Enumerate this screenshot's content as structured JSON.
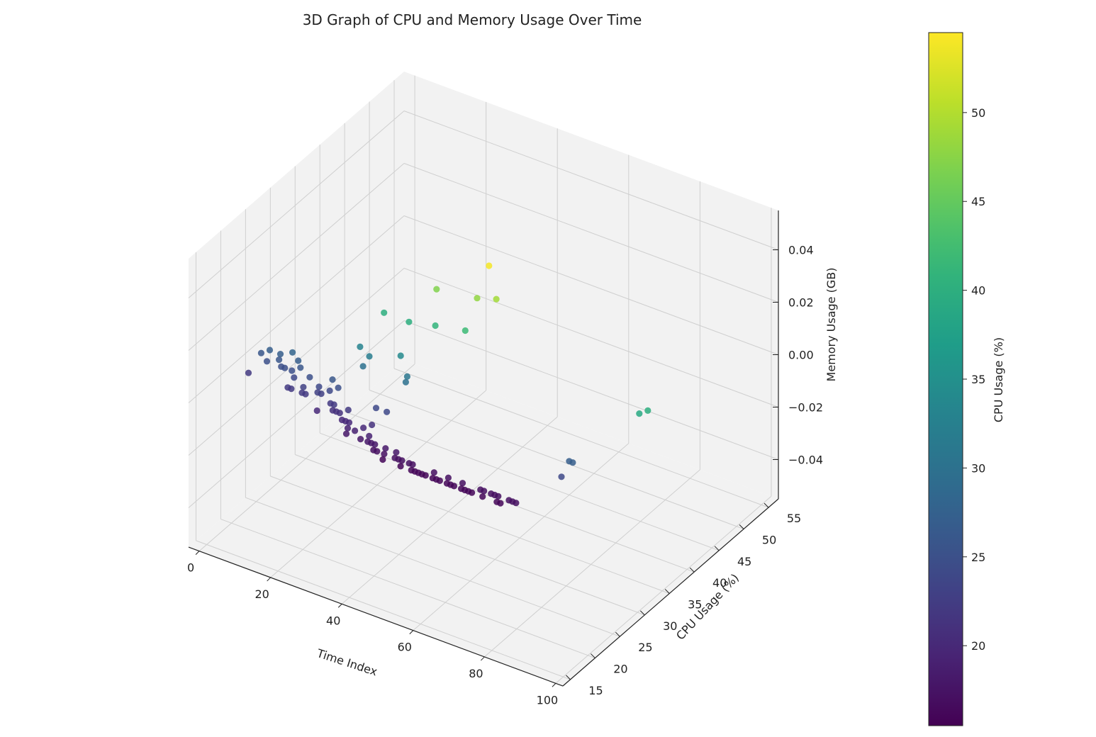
{
  "chart_data": {
    "type": "scatter",
    "projection": "3d",
    "title": "3D Graph of CPU and Memory Usage Over Time",
    "xlabel": "Time Index",
    "ylabel": "CPU Usage (%)",
    "zlabel": "Memory Usage (GB)",
    "colorbar_label": "CPU Usage (%)",
    "colormap": "viridis",
    "colormap_stops": [
      "#440154",
      "#482878",
      "#3e4a89",
      "#31688e",
      "#26828e",
      "#1f9e89",
      "#35b779",
      "#6ece58",
      "#b5de2b",
      "#fde725"
    ],
    "pane_color": "#f2f2f2",
    "grid_color": "#cfcfcf",
    "grid": true,
    "xlim": [
      -3,
      102
    ],
    "ylim": [
      13.5,
      57
    ],
    "zlim": [
      -0.055,
      0.055
    ],
    "clim": [
      15.5,
      54.5
    ],
    "x_ticks": [
      0,
      20,
      40,
      60,
      80,
      100
    ],
    "x_tick_labels": [
      "0",
      "20",
      "40",
      "60",
      "80",
      "100"
    ],
    "y_ticks": [
      15,
      20,
      25,
      30,
      35,
      40,
      45,
      50,
      55
    ],
    "y_tick_labels": [
      "15",
      "20",
      "25",
      "30",
      "35",
      "40",
      "45",
      "50",
      "55"
    ],
    "z_ticks": [
      -0.04,
      -0.02,
      0.0,
      0.02,
      0.04
    ],
    "z_tick_labels": [
      "−0.04",
      "−0.02",
      "0.00",
      "0.02",
      "0.04"
    ],
    "colorbar_ticks": [
      20,
      25,
      30,
      35,
      40,
      45,
      50
    ],
    "colorbar_tick_labels": [
      "20",
      "25",
      "30",
      "35",
      "40",
      "45",
      "50"
    ],
    "points": [
      {
        "x": 0,
        "y": 26,
        "z": 0
      },
      {
        "x": 1,
        "y": 27,
        "z": 0
      },
      {
        "x": 2,
        "y": 22,
        "z": 0
      },
      {
        "x": 3,
        "y": 25,
        "z": 0
      },
      {
        "x": 4,
        "y": 27,
        "z": 0
      },
      {
        "x": 5,
        "y": 26,
        "z": 0
      },
      {
        "x": 6,
        "y": 28,
        "z": 0
      },
      {
        "x": 7,
        "y": 25,
        "z": 0
      },
      {
        "x": 8,
        "y": 25,
        "z": 0
      },
      {
        "x": 9,
        "y": 27,
        "z": 0
      },
      {
        "x": 10,
        "y": 25,
        "z": 0
      },
      {
        "x": 11,
        "y": 26,
        "z": 0
      },
      {
        "x": 12,
        "y": 24,
        "z": 0
      },
      {
        "x": 13,
        "y": 22,
        "z": 0
      },
      {
        "x": 14,
        "y": 22,
        "z": 0
      },
      {
        "x": 15,
        "y": 25,
        "z": 0
      },
      {
        "x": 16,
        "y": 23,
        "z": 0
      },
      {
        "x": 17,
        "y": 22,
        "z": 0
      },
      {
        "x": 18,
        "y": 22,
        "z": 0
      },
      {
        "x": 19,
        "y": 24,
        "z": 0
      },
      {
        "x": 20,
        "y": 23,
        "z": 0
      },
      {
        "x": 21,
        "y": 23,
        "z": 0
      },
      {
        "x": 22,
        "y": 24,
        "z": 0
      },
      {
        "x": 23,
        "y": 25,
        "z": 0
      },
      {
        "x": 24,
        "y": 20,
        "z": 0
      },
      {
        "x": 25,
        "y": 22,
        "z": 0
      },
      {
        "x": 26,
        "y": 22,
        "z": 0
      },
      {
        "x": 27,
        "y": 21,
        "z": 0
      },
      {
        "x": 28,
        "y": 21,
        "z": 0
      },
      {
        "x": 29,
        "y": 21,
        "z": 0
      },
      {
        "x": 30,
        "y": 22,
        "z": 0
      },
      {
        "x": 31,
        "y": 20,
        "z": 0
      },
      {
        "x": 32,
        "y": 20,
        "z": 0
      },
      {
        "x": 33,
        "y": 20,
        "z": 0
      },
      {
        "x": 34,
        "y": 19,
        "z": 0
      },
      {
        "x": 35,
        "y": 18,
        "z": 0
      },
      {
        "x": 36,
        "y": 19,
        "z": 0
      },
      {
        "x": 37,
        "y": 20,
        "z": 0
      },
      {
        "x": 38,
        "y": 21,
        "z": 0
      },
      {
        "x": 39,
        "y": 18,
        "z": 0
      },
      {
        "x": 40,
        "y": 19,
        "z": 0
      },
      {
        "x": 41,
        "y": 18,
        "z": 0
      },
      {
        "x": 42,
        "y": 18,
        "z": 0
      },
      {
        "x": 43,
        "y": 18,
        "z": 0
      },
      {
        "x": 44,
        "y": 17,
        "z": 0
      },
      {
        "x": 45,
        "y": 17,
        "z": 0
      },
      {
        "x": 46,
        "y": 18,
        "z": 0
      },
      {
        "x": 47,
        "y": 17,
        "z": 0
      },
      {
        "x": 48,
        "y": 16,
        "z": 0
      },
      {
        "x": 49,
        "y": 18,
        "z": 0
      },
      {
        "x": 50,
        "y": 17,
        "z": 0
      },
      {
        "x": 51,
        "y": 17,
        "z": 0
      },
      {
        "x": 52,
        "y": 17,
        "z": 0
      },
      {
        "x": 53,
        "y": 16,
        "z": 0
      },
      {
        "x": 54,
        "y": 17,
        "z": 0
      },
      {
        "x": 55,
        "y": 17,
        "z": 0
      },
      {
        "x": 56,
        "y": 16,
        "z": 0
      },
      {
        "x": 57,
        "y": 16,
        "z": 0
      },
      {
        "x": 58,
        "y": 16,
        "z": 0
      },
      {
        "x": 59,
        "y": 16,
        "z": 0
      },
      {
        "x": 60,
        "y": 16,
        "z": 0
      },
      {
        "x": 61,
        "y": 17,
        "z": 0
      },
      {
        "x": 62,
        "y": 16,
        "z": 0
      },
      {
        "x": 63,
        "y": 16,
        "z": 0
      },
      {
        "x": 64,
        "y": 16,
        "z": 0
      },
      {
        "x": 65,
        "y": 17,
        "z": 0
      },
      {
        "x": 66,
        "y": 16,
        "z": 0
      },
      {
        "x": 67,
        "y": 16,
        "z": 0
      },
      {
        "x": 68,
        "y": 16,
        "z": 0
      },
      {
        "x": 69,
        "y": 17,
        "z": 0
      },
      {
        "x": 70,
        "y": 16,
        "z": 0
      },
      {
        "x": 71,
        "y": 16,
        "z": 0
      },
      {
        "x": 72,
        "y": 16,
        "z": 0
      },
      {
        "x": 73,
        "y": 16,
        "z": 0
      },
      {
        "x": 74,
        "y": 17,
        "z": 0
      },
      {
        "x": 75,
        "y": 17,
        "z": 0
      },
      {
        "x": 76,
        "y": 16,
        "z": 0
      },
      {
        "x": 77,
        "y": 17,
        "z": 0
      },
      {
        "x": 78,
        "y": 17,
        "z": 0
      },
      {
        "x": 79,
        "y": 17,
        "z": 0
      },
      {
        "x": 80,
        "y": 16,
        "z": 0
      },
      {
        "x": 81,
        "y": 16,
        "z": 0
      },
      {
        "x": 82,
        "y": 17,
        "z": 0
      },
      {
        "x": 83,
        "y": 17,
        "z": 0
      },
      {
        "x": 84,
        "y": 17,
        "z": 0
      },
      {
        "x": 85,
        "y": 27,
        "z": 0
      },
      {
        "x": 86,
        "y": 27,
        "z": 0
      },
      {
        "x": 87,
        "y": 24,
        "z": 0
      },
      {
        "x": 88,
        "y": 39,
        "z": 0
      },
      {
        "x": 89,
        "y": 40,
        "z": 0
      },
      {
        "x": 15,
        "y": 40,
        "z": 0
      },
      {
        "x": 20,
        "y": 47,
        "z": 0
      },
      {
        "x": 25,
        "y": 54,
        "z": 0
      },
      {
        "x": 30,
        "y": 48,
        "z": 0
      },
      {
        "x": 34,
        "y": 49,
        "z": 0
      },
      {
        "x": 22,
        "y": 40,
        "z": 0
      },
      {
        "x": 28,
        "y": 41,
        "z": 0
      },
      {
        "x": 35,
        "y": 42,
        "z": 0
      },
      {
        "x": 18,
        "y": 33,
        "z": 0
      },
      {
        "x": 22,
        "y": 32,
        "z": 0
      },
      {
        "x": 23,
        "y": 30,
        "z": 0
      },
      {
        "x": 28,
        "y": 34,
        "z": 0
      },
      {
        "x": 34,
        "y": 31,
        "z": 0
      },
      {
        "x": 35,
        "y": 30,
        "z": 0
      },
      {
        "x": 20,
        "y": 26,
        "z": 0
      },
      {
        "x": 35,
        "y": 24,
        "z": 0
      },
      {
        "x": 38,
        "y": 24,
        "z": 0
      }
    ]
  }
}
